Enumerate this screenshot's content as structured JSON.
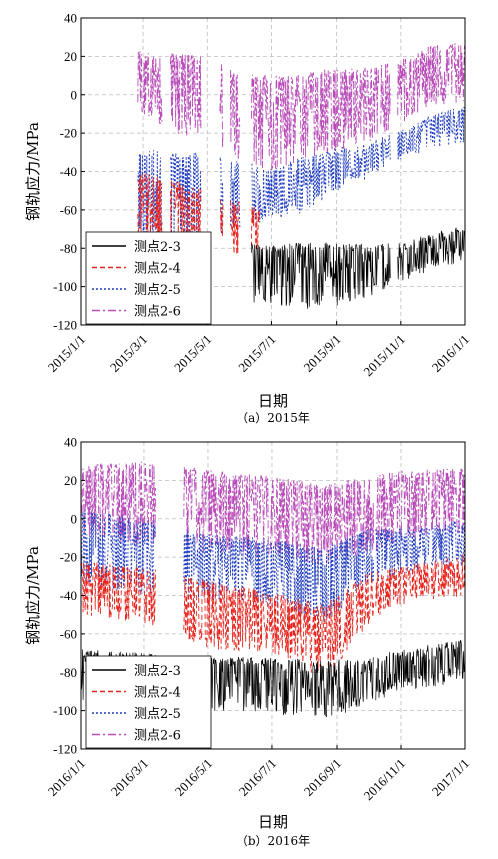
{
  "chart_data": [
    {
      "type": "line",
      "caption": "（a）2015年",
      "xlabel": "日期",
      "ylabel": "钢轨应力/MPa",
      "ylim": [
        -120,
        40
      ],
      "yticks": [
        40,
        20,
        0,
        -20,
        -40,
        -60,
        -80,
        -100,
        -120
      ],
      "xlim": [
        "2015-01-01",
        "2016-01-01"
      ],
      "xticks": [
        "2015/1/1",
        "2015/3/1",
        "2015/5/1",
        "2015/7/1",
        "2015/9/1",
        "2015/11/1",
        "2016/1/1"
      ],
      "grid": true,
      "legend": "bottom-left",
      "gaps": [
        [
          "2015-01-01",
          "2015-02-24"
        ],
        [
          "2015-03-19",
          "2015-03-27"
        ],
        [
          "2015-04-25",
          "2015-05-13"
        ],
        [
          "2015-05-16",
          "2015-05-23"
        ],
        [
          "2015-06-01",
          "2015-06-12"
        ],
        [
          "2015-10-11",
          "2015-10-13"
        ],
        [
          "2015-10-22",
          "2015-10-29"
        ]
      ],
      "series": [
        {
          "name": "测点2-3",
          "color": "#000000",
          "dash": "solid",
          "from": "2015-06-05",
          "to": "2016-01-01",
          "x": [
            "2015-06-05",
            "2015-07-01",
            "2015-08-01",
            "2015-09-01",
            "2015-10-01",
            "2015-11-01",
            "2015-12-01",
            "2016-01-01"
          ],
          "upper": [
            -77,
            -78,
            -77,
            -77,
            -78,
            -77,
            -72,
            -68
          ],
          "lower": [
            -108,
            -110,
            -112,
            -110,
            -106,
            -98,
            -92,
            -86
          ]
        },
        {
          "name": "测点2-4",
          "color": "#e8231c",
          "dash": "5,3",
          "from": "2015-02-24",
          "to": "2015-06-20",
          "x": [
            "2015-02-24",
            "2015-03-15",
            "2015-04-01",
            "2015-04-20",
            "2015-05-10",
            "2015-06-01",
            "2015-06-20"
          ],
          "upper": [
            -40,
            -42,
            -45,
            -48,
            -52,
            -56,
            -58
          ],
          "lower": [
            -76,
            -78,
            -80,
            -80,
            -82,
            -84,
            -84
          ]
        },
        {
          "name": "测点2-5",
          "color": "#1f3cbf",
          "dash": "2,2",
          "from": "2015-02-24",
          "to": "2016-01-01",
          "x": [
            "2015-02-24",
            "2015-04-01",
            "2015-05-01",
            "2015-06-01",
            "2015-07-01",
            "2015-08-01",
            "2015-09-01",
            "2015-10-01",
            "2015-11-01",
            "2015-12-01",
            "2016-01-01"
          ],
          "upper": [
            -28,
            -30,
            -30,
            -35,
            -38,
            -32,
            -28,
            -25,
            -18,
            -10,
            -5
          ],
          "lower": [
            -75,
            -78,
            -80,
            -70,
            -65,
            -62,
            -50,
            -45,
            -35,
            -28,
            -25
          ]
        },
        {
          "name": "测点2-6",
          "color": "#b84bb8",
          "dash": "8,3,2,3",
          "from": "2015-02-24",
          "to": "2016-01-01",
          "x": [
            "2015-02-24",
            "2015-04-01",
            "2015-05-01",
            "2015-06-01",
            "2015-07-01",
            "2015-08-01",
            "2015-09-01",
            "2015-10-01",
            "2015-11-01",
            "2015-12-01",
            "2016-01-01"
          ],
          "upper": [
            23,
            22,
            20,
            12,
            10,
            12,
            14,
            15,
            18,
            26,
            28
          ],
          "lower": [
            -10,
            -20,
            -25,
            -35,
            -40,
            -35,
            -30,
            -25,
            -15,
            -5,
            -5
          ]
        }
      ]
    },
    {
      "type": "line",
      "caption": "（b）2016年",
      "xlabel": "日期",
      "ylabel": "钢轨应力/MPa",
      "ylim": [
        -120,
        40
      ],
      "yticks": [
        40,
        20,
        0,
        -20,
        -40,
        -60,
        -80,
        -100,
        -120
      ],
      "xlim": [
        "2016-01-01",
        "2017-01-01"
      ],
      "xticks": [
        "2016/1/1",
        "2016/3/1",
        "2016/5/1",
        "2016/7/1",
        "2016/9/1",
        "2016/11/1",
        "2017/1/1"
      ],
      "grid": true,
      "legend": "bottom-left",
      "gaps": [
        [
          "2016-03-12",
          "2016-04-08"
        ],
        [
          "2016-10-06",
          "2016-10-08"
        ],
        [
          "2016-11-28",
          "2016-11-30"
        ]
      ],
      "series": [
        {
          "name": "测点2-3",
          "color": "#000000",
          "dash": "solid",
          "from": "2016-01-01",
          "to": "2017-01-01",
          "x": [
            "2016-01-01",
            "2016-03-01",
            "2016-05-01",
            "2016-07-01",
            "2016-08-20",
            "2016-10-01",
            "2016-11-01",
            "2017-01-01"
          ],
          "upper": [
            -68,
            -70,
            -72,
            -72,
            -74,
            -72,
            -68,
            -63
          ],
          "lower": [
            -95,
            -98,
            -100,
            -102,
            -104,
            -98,
            -90,
            -85
          ]
        },
        {
          "name": "测点2-4",
          "color": "#e8231c",
          "dash": "5,3",
          "from": "2016-01-01",
          "to": "2017-01-01",
          "x": [
            "2016-01-01",
            "2016-03-01",
            "2016-05-01",
            "2016-07-01",
            "2016-08-20",
            "2016-10-01",
            "2016-11-01",
            "2017-01-01"
          ],
          "upper": [
            -22,
            -25,
            -32,
            -38,
            -45,
            -28,
            -25,
            -18
          ],
          "lower": [
            -50,
            -55,
            -68,
            -70,
            -85,
            -55,
            -45,
            -40
          ]
        },
        {
          "name": "测点2-5",
          "color": "#1f3cbf",
          "dash": "2,2",
          "from": "2016-01-01",
          "to": "2017-01-01",
          "x": [
            "2016-01-01",
            "2016-03-01",
            "2016-05-01",
            "2016-07-01",
            "2016-08-20",
            "2016-10-01",
            "2016-11-01",
            "2017-01-01"
          ],
          "upper": [
            5,
            0,
            -8,
            -10,
            -15,
            -5,
            -5,
            0
          ],
          "lower": [
            -35,
            -40,
            -42,
            -45,
            -55,
            -35,
            -30,
            -25
          ]
        },
        {
          "name": "测点2-6",
          "color": "#b84bb8",
          "dash": "8,3,2,3",
          "from": "2016-01-01",
          "to": "2017-01-01",
          "x": [
            "2016-01-01",
            "2016-03-01",
            "2016-05-01",
            "2016-07-01",
            "2016-08-20",
            "2016-10-01",
            "2016-11-01",
            "2017-01-01"
          ],
          "upper": [
            28,
            30,
            26,
            22,
            18,
            22,
            25,
            27
          ],
          "lower": [
            -10,
            -15,
            -18,
            -20,
            -25,
            -18,
            -12,
            -8
          ]
        }
      ]
    }
  ]
}
